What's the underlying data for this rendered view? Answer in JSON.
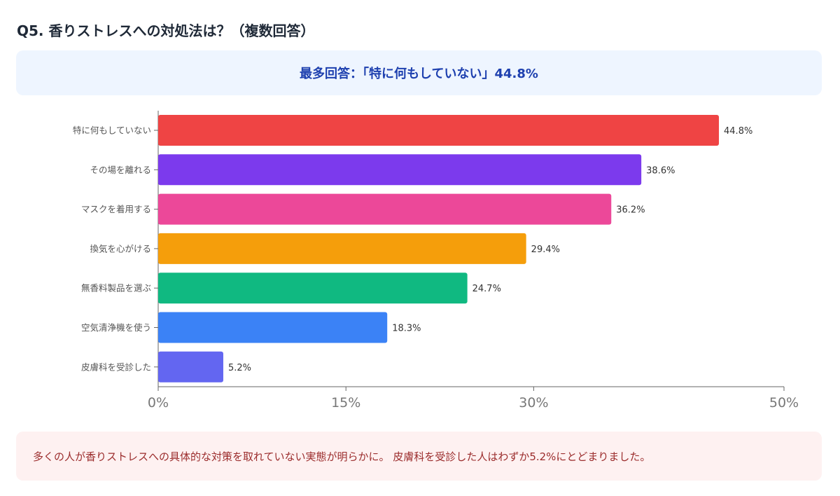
{
  "title": "Q5. 香りストレスへの対処法は？（複数回答）",
  "highlight": "最多回答：「特に何もしていない」44.8%",
  "note": "多くの人が香りストレスへの具体的な対策を取れていない実態が明らかに。 皮膚科を受診した人はわずか5.2%にとどまりました。",
  "chart_data": {
    "type": "bar",
    "orientation": "horizontal",
    "categories": [
      "特に何もしていない",
      "その場を離れる",
      "マスクを着用する",
      "換気を心がける",
      "無香料製品を選ぶ",
      "空気清浄機を使う",
      "皮膚科を受診した"
    ],
    "values": [
      44.8,
      38.6,
      36.2,
      29.4,
      24.7,
      18.3,
      5.2
    ],
    "value_labels": [
      "44.8%",
      "38.6%",
      "36.2%",
      "29.4%",
      "24.7%",
      "18.3%",
      "5.2%"
    ],
    "colors": [
      "#ef4444",
      "#7c3aed",
      "#ec4899",
      "#f59e0b",
      "#10b981",
      "#3b82f6",
      "#6366f1"
    ],
    "xlim": [
      0,
      50
    ],
    "xticks": [
      0,
      15,
      30,
      50
    ],
    "xtick_labels": [
      "0%",
      "15%",
      "30%",
      "50%"
    ],
    "grid": false
  }
}
